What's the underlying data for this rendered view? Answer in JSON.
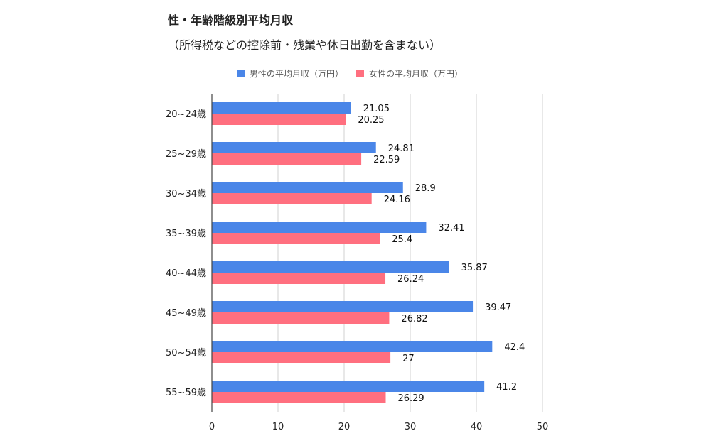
{
  "chart_data": {
    "type": "bar",
    "orientation": "horizontal",
    "title": "性・年齢階級別平均月収",
    "subtitle": "（所得税などの控除前・残業や休日出勤を含まない）",
    "categories": [
      "20~24歳",
      "25~29歳",
      "30~34歳",
      "35~39歳",
      "40~44歳",
      "45~49歳",
      "50~54歳",
      "55~59歳"
    ],
    "series": [
      {
        "name": "男性の平均月収（万円）",
        "color": "#4a86e8",
        "values": [
          21.05,
          24.81,
          28.9,
          32.41,
          35.87,
          39.47,
          42.4,
          41.2
        ],
        "labels": [
          "21.05",
          "24.81",
          "28.9",
          "32.41",
          "35.87",
          "39.47",
          "42.4",
          "41.2"
        ]
      },
      {
        "name": "女性の平均月収（万円）",
        "color": "#ff6f7f",
        "values": [
          20.25,
          22.59,
          24.16,
          25.4,
          26.24,
          26.82,
          27,
          26.29
        ],
        "labels": [
          "20.25",
          "22.59",
          "24.16",
          "25.4",
          "26.24",
          "26.82",
          "27",
          "26.29"
        ]
      }
    ],
    "xlim": [
      0,
      50
    ],
    "xticks": [
      0,
      10,
      20,
      30,
      40,
      50
    ],
    "xtick_labels": [
      "0",
      "10",
      "20",
      "30",
      "40",
      "50"
    ],
    "grid": true,
    "legend_position": "top"
  }
}
